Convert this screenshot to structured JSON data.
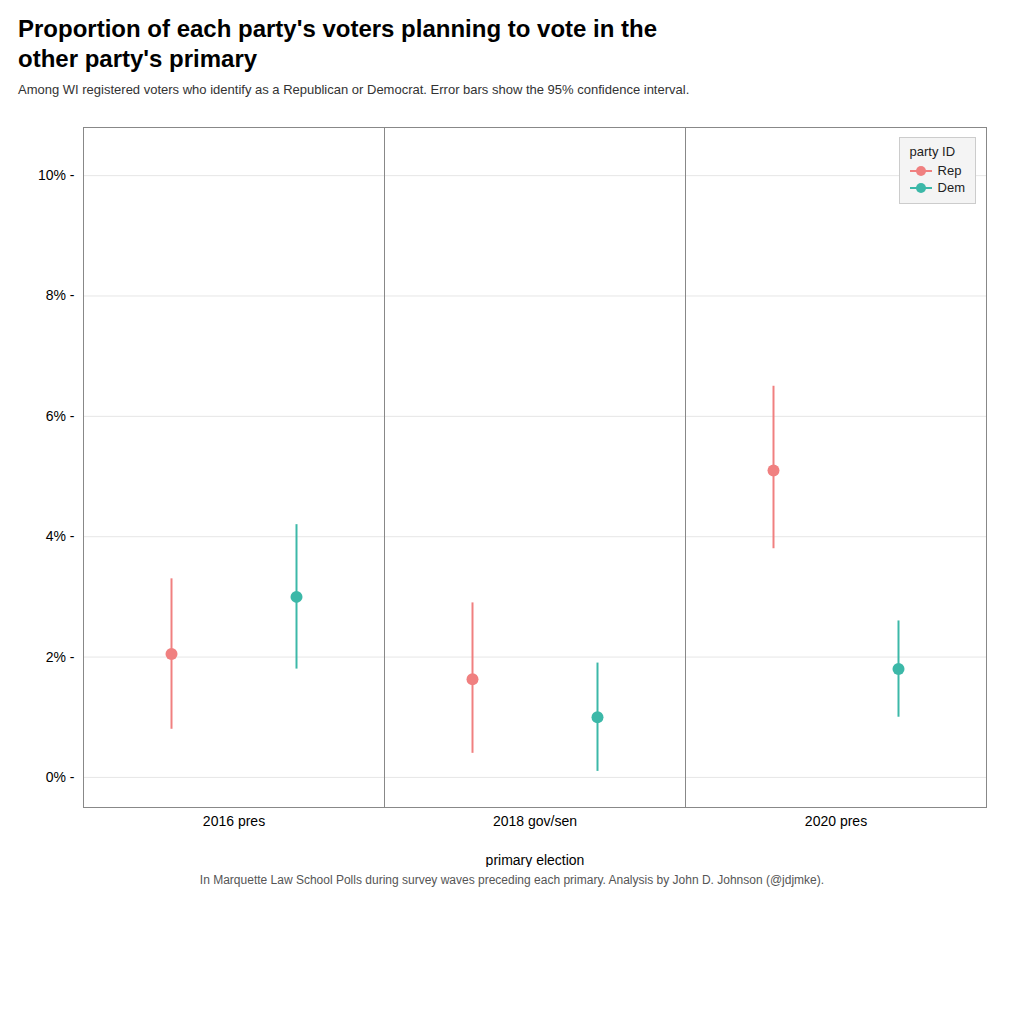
{
  "chart_data": {
    "type": "dot",
    "title": "Proportion of each party's voters planning to vote in the\nother party's primary",
    "subtitle": "Among WI registered voters who identify as a Republican or Democrat. Error bars show the 95% confidence interval.",
    "footnote": "In Marquette Law School Polls during survey waves preceding each primary. Analysis by John D. Johnson (@jdjmke).",
    "xlabel": "primary election",
    "categories": [
      "2016 pres",
      "2018 gov/sen",
      "2020 pres"
    ],
    "series": [
      {
        "name": "Rep",
        "color": "#F08080",
        "values": [
          0.0205,
          0.0163,
          0.051
        ],
        "lower": [
          0.008,
          0.004,
          0.038
        ],
        "upper": [
          0.033,
          0.029,
          0.065
        ]
      },
      {
        "name": "Dem",
        "color": "#3CB8A8",
        "values": [
          0.03,
          0.01,
          0.018
        ],
        "lower": [
          0.018,
          0.001,
          0.01
        ],
        "upper": [
          0.042,
          0.019,
          0.026
        ]
      }
    ],
    "legend_title": "party ID",
    "legend": "upper right",
    "ylim": [
      -0.005,
      0.108
    ],
    "yticks": [
      {
        "value": 0.0,
        "label": "0% -"
      },
      {
        "value": 0.02,
        "label": "2% -"
      },
      {
        "value": 0.04,
        "label": "4% -"
      },
      {
        "value": 0.06,
        "label": "6% -"
      },
      {
        "value": 0.08,
        "label": "8% -"
      },
      {
        "value": 0.1,
        "label": "10% -"
      }
    ],
    "grid": true
  }
}
